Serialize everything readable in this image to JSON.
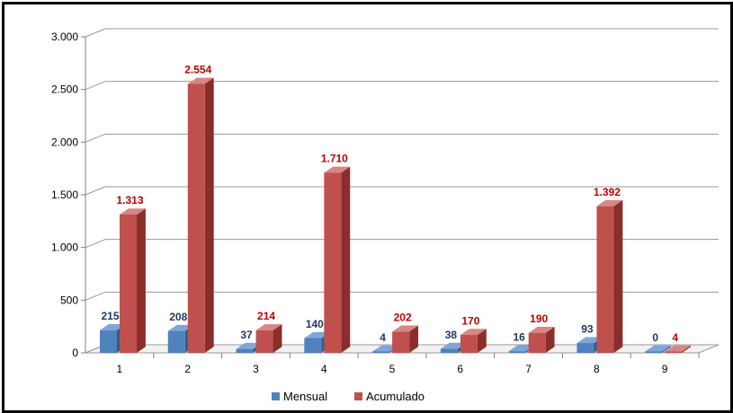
{
  "chart_data": {
    "type": "bar",
    "categories": [
      "1",
      "2",
      "3",
      "4",
      "5",
      "6",
      "7",
      "8",
      "9"
    ],
    "series": [
      {
        "name": "Mensual",
        "values": [
          215,
          208,
          37,
          140,
          4,
          38,
          16,
          93,
          0
        ],
        "labels": [
          "215",
          "208",
          "37",
          "140",
          "4",
          "38",
          "16",
          "93",
          "0"
        ]
      },
      {
        "name": "Acumulado",
        "values": [
          1313,
          2554,
          214,
          1710,
          202,
          170,
          190,
          1392,
          4
        ],
        "labels": [
          "1.313",
          "2.554",
          "214",
          "1.710",
          "202",
          "170",
          "190",
          "1.392",
          "4"
        ]
      }
    ],
    "ylim": [
      0,
      3000
    ],
    "yticks": [
      0,
      500,
      1000,
      1500,
      2000,
      2500,
      3000
    ],
    "ytick_labels": [
      "0",
      "500",
      "1.000",
      "1.500",
      "2.000",
      "2.500",
      "3.000"
    ],
    "grid": true,
    "legend_position": "bottom",
    "colors": {
      "mensual_front": "#4F81BD",
      "mensual_side": "#2F5C8F",
      "mensual_top": "#7EA6D9",
      "acumulado_front": "#C0504D",
      "acumulado_side": "#8B2E2B",
      "acumulado_top": "#D98583",
      "mensual_label": "#1F3864",
      "acumulado_label": "#C00000"
    }
  }
}
